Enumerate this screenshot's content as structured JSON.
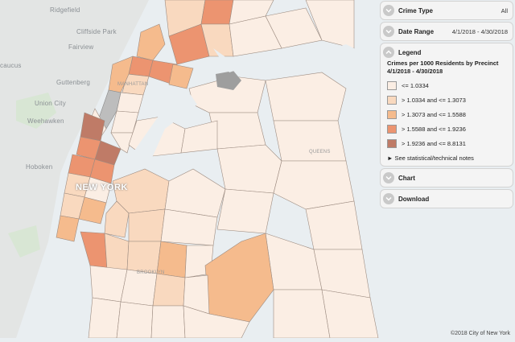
{
  "map": {
    "labels": {
      "ridgefield": "Ridgefield",
      "cliffside_park": "Cliffside Park",
      "fairview": "Fairview",
      "secaucus": "caucus",
      "guttenberg": "Guttenberg",
      "union_city": "Union City",
      "weehawken": "Weehawken",
      "hoboken": "Hoboken",
      "new_york": "NEW YORK",
      "manhattan": "MANHATTAN",
      "queens": "QUEENS",
      "brooklyn": "BROOKLYN"
    },
    "copyright": "©2018 City of New York"
  },
  "panel": {
    "crime_type": {
      "label": "Crime Type",
      "value": "All"
    },
    "date_range": {
      "label": "Date Range",
      "value": "4/1/2018 - 4/30/2018"
    },
    "legend": {
      "label": "Legend",
      "title": "Crimes per 1000 Residents by Precinct 4/1/2018 - 4/30/2018",
      "items": [
        {
          "label": "<= 1.0334",
          "color": "#fbeee4"
        },
        {
          "label": "> 1.0334 and <= 1.3073",
          "color": "#f9d9bf"
        },
        {
          "label": "> 1.3073 and <= 1.5588",
          "color": "#f5bb8d"
        },
        {
          "label": "> 1.5588 and <= 1.9236",
          "color": "#ec9470"
        },
        {
          "label": "> 1.9236 and <= 8.8131",
          "color": "#bf7b67"
        }
      ],
      "notes": "► See statistical/technical notes"
    },
    "chart": {
      "label": "Chart"
    },
    "download": {
      "label": "Download"
    }
  }
}
